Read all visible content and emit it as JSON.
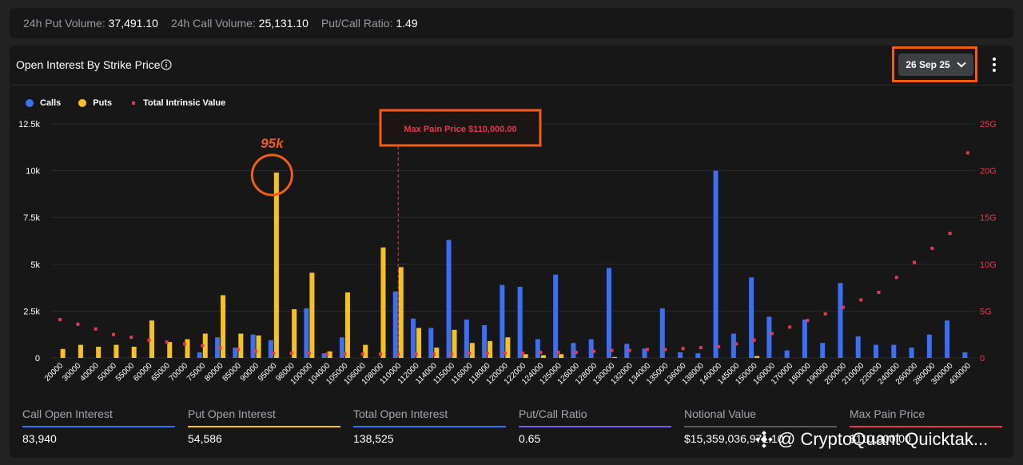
{
  "topbar": {
    "put_volume_label": "24h Put Volume:",
    "put_volume_value": "37,491.10",
    "call_volume_label": "24h Call Volume:",
    "call_volume_value": "25,131.10",
    "ratio_label": "Put/Call Ratio:",
    "ratio_value": "1.49"
  },
  "card": {
    "title": "Open Interest By Strike Price",
    "date_selected": "26 Sep 25"
  },
  "colors": {
    "calls": "#3b6ff5",
    "puts": "#f7c31a",
    "intrinsic": "#e8384f",
    "highlight": "#f25d12",
    "purple": "#7d5cf0"
  },
  "legend": {
    "calls": "Calls",
    "puts": "Puts",
    "intrinsic": "Total Intrinsic Value"
  },
  "chart_data": {
    "type": "bar",
    "categories": [
      "20000",
      "30000",
      "40000",
      "50000",
      "55000",
      "60000",
      "65000",
      "70000",
      "75000",
      "80000",
      "85000",
      "90000",
      "95000",
      "98000",
      "100000",
      "104000",
      "105000",
      "106000",
      "108000",
      "110000",
      "112000",
      "114000",
      "115000",
      "116000",
      "118000",
      "120000",
      "122000",
      "124000",
      "125000",
      "126000",
      "128000",
      "130000",
      "132000",
      "134000",
      "135000",
      "136000",
      "138000",
      "140000",
      "145000",
      "150000",
      "160000",
      "170000",
      "180000",
      "190000",
      "200000",
      "210000",
      "220000",
      "240000",
      "260000",
      "280000",
      "300000",
      "400000"
    ],
    "series": [
      {
        "name": "Calls",
        "values": [
          0,
          0,
          0,
          0,
          0,
          0,
          0,
          0,
          300,
          1100,
          550,
          1250,
          950,
          0,
          2650,
          250,
          1100,
          0,
          0,
          3550,
          2100,
          1600,
          6300,
          2050,
          1750,
          3900,
          3800,
          1000,
          4450,
          800,
          1000,
          4800,
          750,
          500,
          2650,
          300,
          250,
          10000,
          1300,
          4300,
          2200,
          400,
          2050,
          800,
          4000,
          1150,
          700,
          700,
          550,
          1250,
          2000,
          300
        ]
      },
      {
        "name": "Puts",
        "values": [
          480,
          700,
          600,
          700,
          600,
          2000,
          850,
          1000,
          1300,
          3350,
          1300,
          1200,
          9900,
          2600,
          4550,
          350,
          3500,
          700,
          5900,
          4850,
          1600,
          550,
          1500,
          800,
          900,
          1100,
          200,
          150,
          200,
          0,
          0,
          50,
          0,
          0,
          0,
          0,
          0,
          0,
          0,
          100,
          0,
          0,
          0,
          0,
          0,
          0,
          0,
          0,
          0,
          0,
          0,
          0
        ]
      },
      {
        "name": "Total Intrinsic Value",
        "values": [
          4.1,
          3.6,
          3.1,
          2.5,
          2.2,
          1.9,
          1.7,
          1.5,
          1.3,
          1.1,
          0.9,
          0.7,
          0.5,
          0.5,
          0.5,
          0.4,
          0.4,
          0.4,
          0.4,
          0.4,
          0.4,
          0.4,
          0.4,
          0.5,
          0.5,
          0.5,
          0.5,
          0.6,
          0.6,
          0.6,
          0.7,
          0.8,
          0.8,
          0.9,
          0.9,
          1.0,
          1.1,
          1.2,
          1.5,
          1.9,
          2.6,
          3.3,
          4.0,
          4.7,
          5.4,
          6.2,
          7.0,
          8.6,
          10.2,
          11.7,
          13.3,
          21.9
        ]
      }
    ],
    "y_left": {
      "ticks": [
        "0",
        "2.5k",
        "5k",
        "7.5k",
        "10k",
        "12.5k"
      ],
      "ylim": [
        0,
        12500
      ]
    },
    "y_right": {
      "ticks": [
        "0",
        "5G",
        "10G",
        "15G",
        "20G",
        "25G"
      ],
      "ylim": [
        0,
        25
      ]
    },
    "max_pain_label": "Max Pain Price $110,000.00",
    "max_pain_strike": "110000",
    "annotation_label": "95k",
    "annotation_strike": "95000",
    "grid": true,
    "legend_position": "top-left"
  },
  "stats": [
    {
      "title": "Call Open Interest",
      "value": "83,940",
      "color": "#3b6ff5"
    },
    {
      "title": "Put Open Interest",
      "value": "54,586",
      "color": "#f7c31a"
    },
    {
      "title": "Total Open Interest",
      "value": "138,525",
      "color": "#3b6ff5"
    },
    {
      "title": "Put/Call Ratio",
      "value": "0.65",
      "color": "#7d5cf0"
    },
    {
      "title": "Notional Value",
      "value": "$15,359,036,971.10",
      "color": "#5a5a5e"
    },
    {
      "title": "Max Pain Price",
      "value": "$110,000.00",
      "color": "#e8384f"
    }
  ],
  "watermark": "@ CryptoQuant Quicktak..."
}
